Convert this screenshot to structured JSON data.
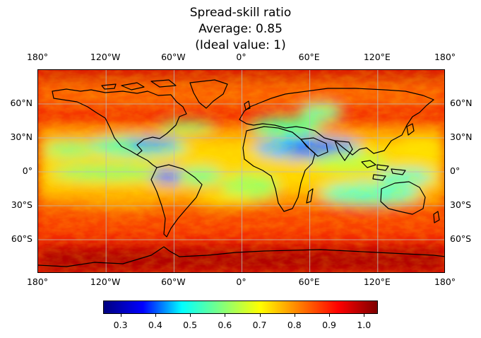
{
  "title": {
    "line1": "Spread-skill ratio",
    "line2": "Average: 0.85",
    "line3": "(Ideal value: 1)"
  },
  "map": {
    "projection": "equirectangular",
    "extent": {
      "lon": [
        -180,
        180
      ],
      "lat": [
        -90,
        90
      ]
    },
    "gridlines": true,
    "coastlines": true,
    "colormap": "jet",
    "lon_ticks": [
      {
        "value": -180,
        "label": "180°"
      },
      {
        "value": -120,
        "label": "120°W"
      },
      {
        "value": -60,
        "label": "60°W"
      },
      {
        "value": 0,
        "label": "0°"
      },
      {
        "value": 60,
        "label": "60°E"
      },
      {
        "value": 120,
        "label": "120°E"
      },
      {
        "value": 180,
        "label": "180°"
      }
    ],
    "lat_ticks": [
      {
        "value": 60,
        "label": "60°N"
      },
      {
        "value": 30,
        "label": "30°N"
      },
      {
        "value": 0,
        "label": "0°"
      },
      {
        "value": -30,
        "label": "30°S"
      },
      {
        "value": -60,
        "label": "60°S"
      }
    ]
  },
  "colorbar": {
    "range": [
      0.25,
      1.04
    ],
    "ticks": [
      {
        "value": 0.3,
        "label": "0.3"
      },
      {
        "value": 0.4,
        "label": "0.4"
      },
      {
        "value": 0.5,
        "label": "0.5"
      },
      {
        "value": 0.6,
        "label": "0.6"
      },
      {
        "value": 0.7,
        "label": "0.7"
      },
      {
        "value": 0.8,
        "label": "0.8"
      },
      {
        "value": 0.9,
        "label": "0.9"
      },
      {
        "value": 1.0,
        "label": "1.0"
      }
    ],
    "colors": [
      "#00007f",
      "#0000ff",
      "#00ffff",
      "#7fff7f",
      "#ffff00",
      "#ff7f00",
      "#ff0000",
      "#7f0000"
    ]
  }
}
